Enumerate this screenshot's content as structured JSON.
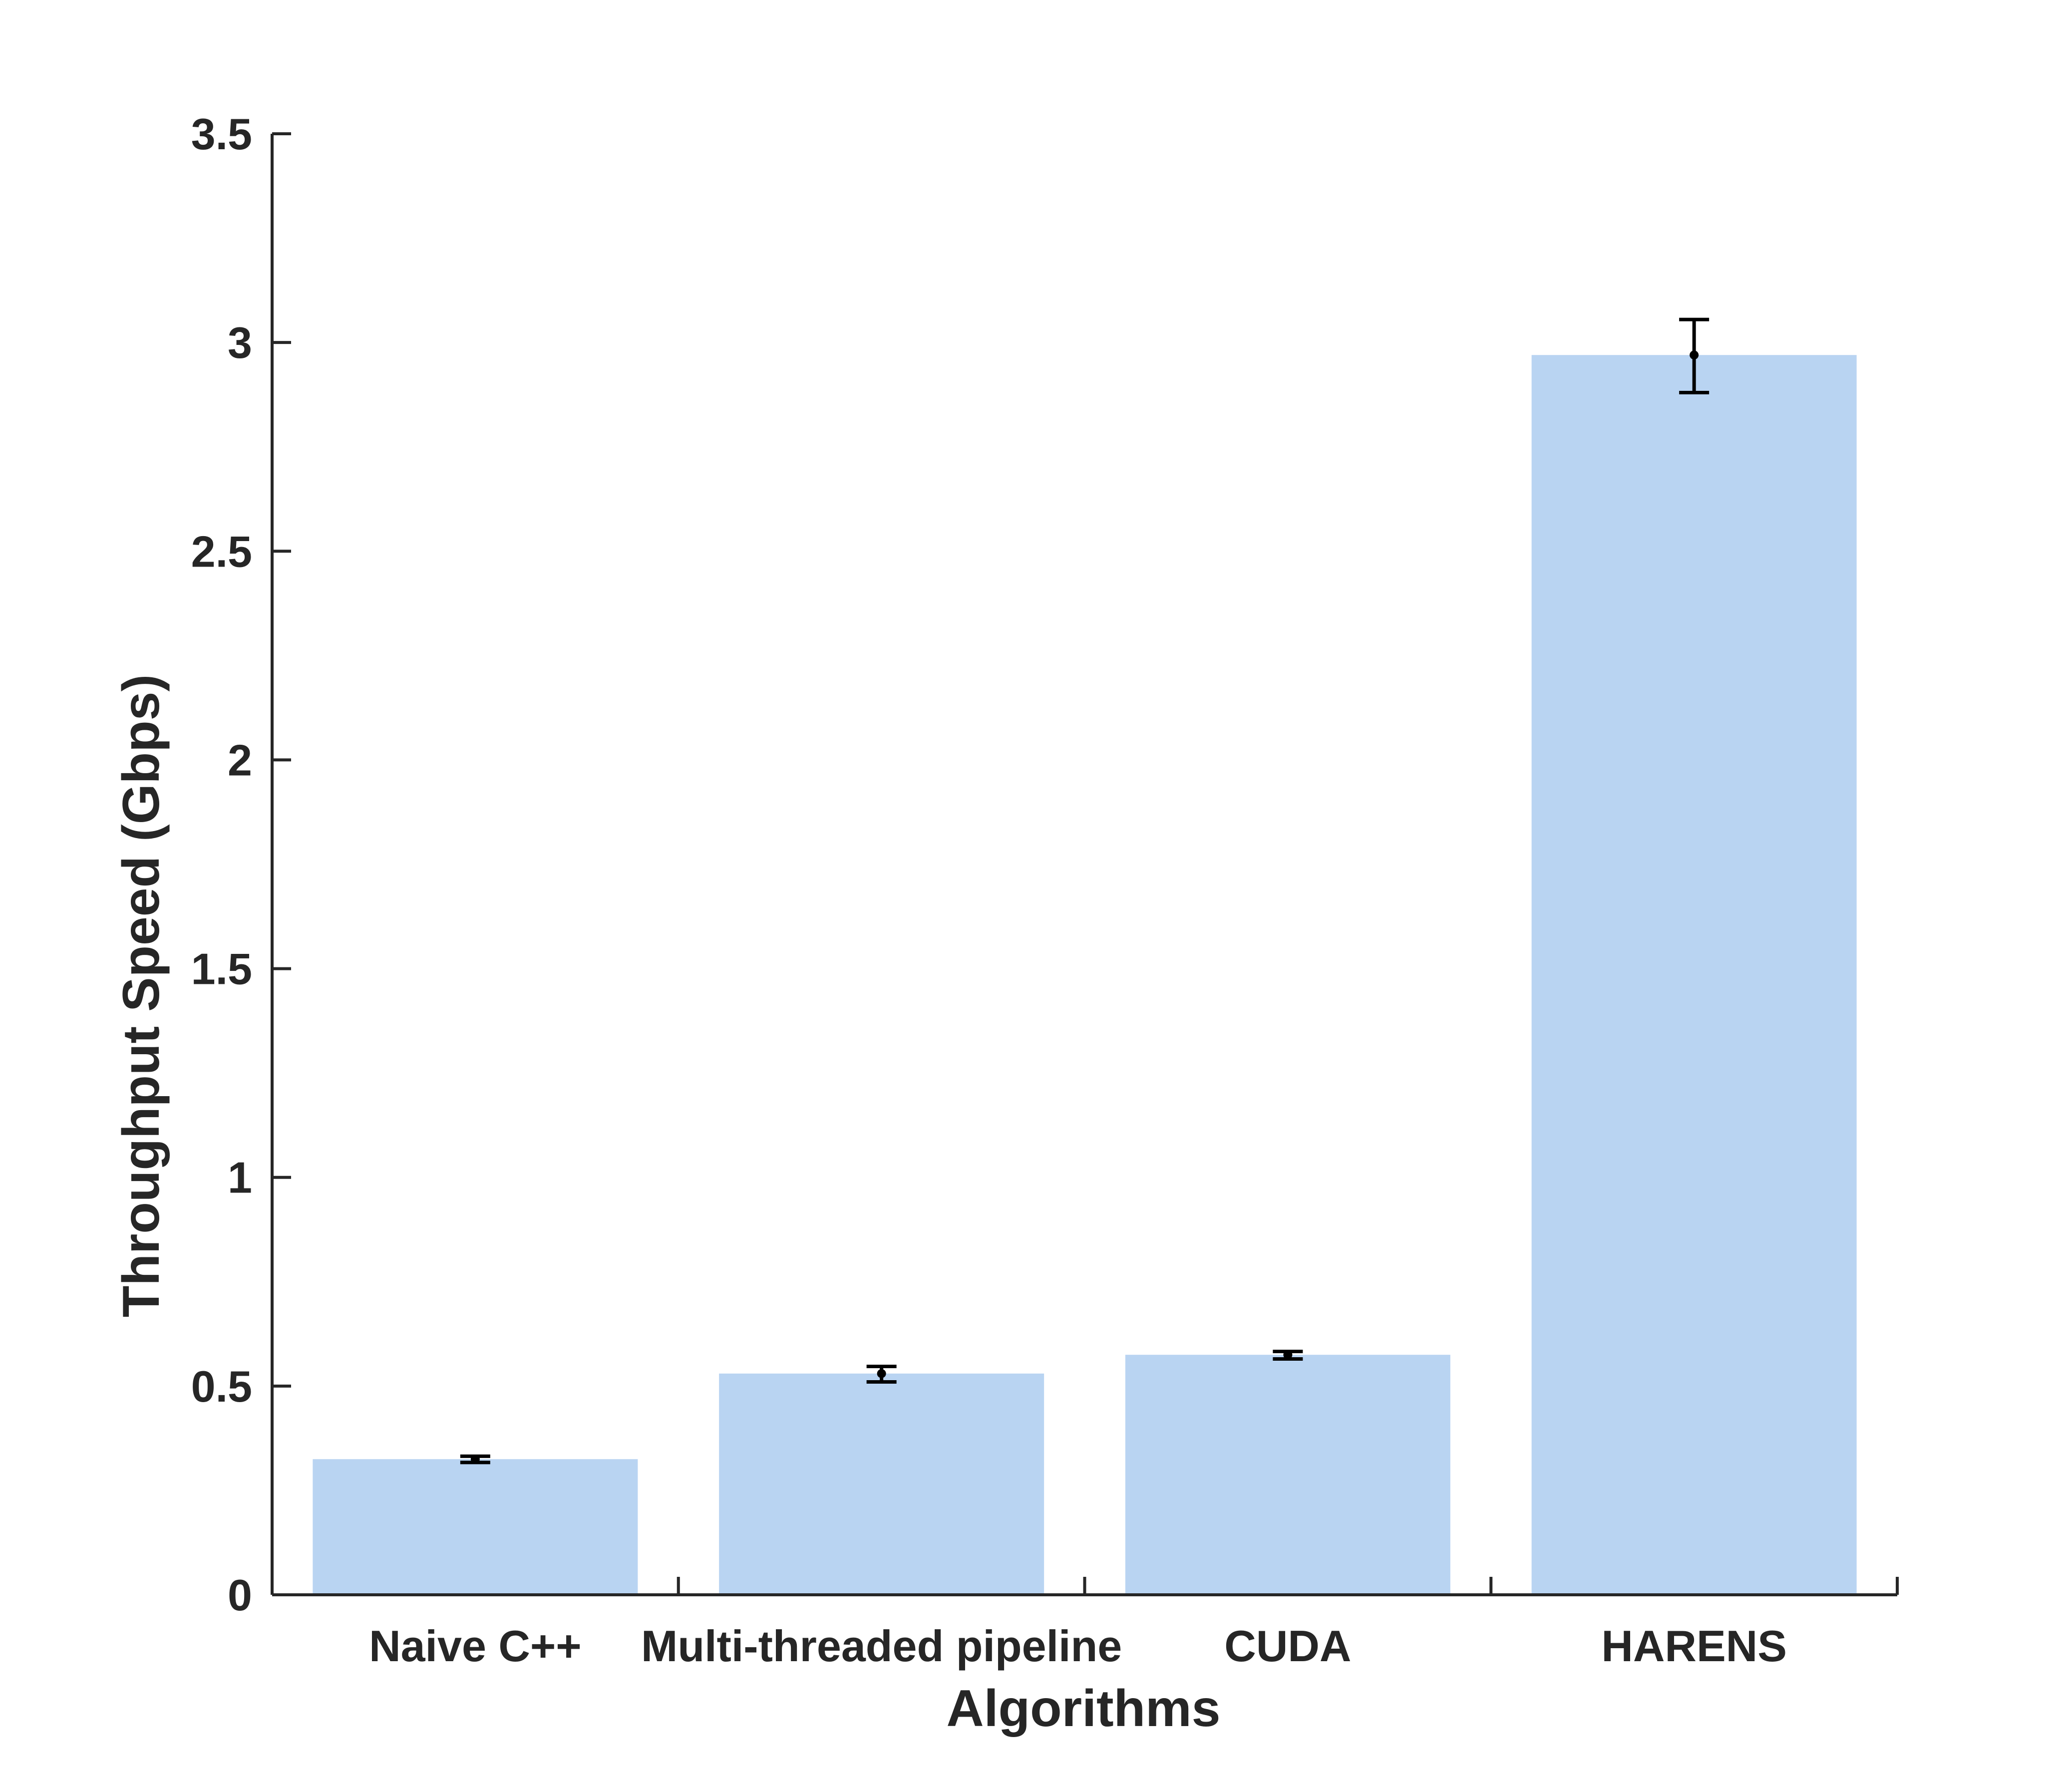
{
  "colors": {
    "bar": "#b9d4f2",
    "axis": "#262626",
    "error_bar": "#000000",
    "background": "#ffffff"
  },
  "chart_data": {
    "type": "bar",
    "categories": [
      "Naive C++",
      "Multi-threaded pipeline",
      "CUDA",
      "HARENS"
    ],
    "values": [
      0.325,
      0.53,
      0.575,
      2.97
    ],
    "error_bars": [
      {
        "low": 0.317,
        "high": 0.332
      },
      {
        "low": 0.51,
        "high": 0.547
      },
      {
        "low": 0.565,
        "high": 0.583
      },
      {
        "low": 2.88,
        "high": 3.055
      }
    ],
    "xlabel": "Algorithms",
    "ylabel": "Throughput Speed (Gbps)",
    "ylim": [
      0,
      3.5
    ],
    "yticks": [
      0,
      0.5,
      1,
      1.5,
      2,
      2.5,
      3,
      3.5
    ],
    "ytick_labels": [
      "0",
      "0.5",
      "1",
      "1.5",
      "2",
      "2.5",
      "3",
      "3.5"
    ],
    "grid": false,
    "legend": "none"
  }
}
